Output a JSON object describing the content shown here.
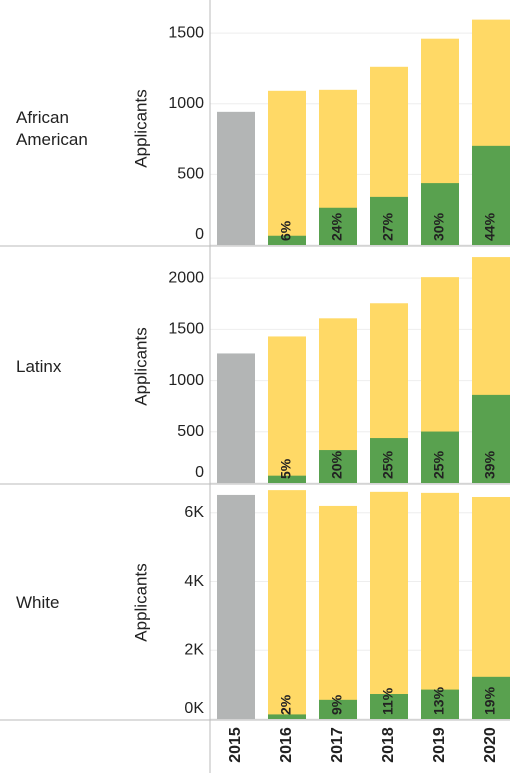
{
  "chart_data": {
    "type": "bar",
    "categories": [
      "2015",
      "2016",
      "2017",
      "2018",
      "2019",
      "2020"
    ],
    "color": "#ffd966",
    "base_color": "#b3b5b5",
    "share_color": "#59a14f",
    "grid": true,
    "panels": [
      {
        "row_label": "African American",
        "ylabel": "Applicants",
        "values": [
          943,
          1092,
          1099,
          1262,
          1461,
          1596
        ],
        "share": [
          null,
          6,
          24,
          27,
          30,
          44
        ],
        "share_labels": [
          null,
          "6%",
          "24%",
          "27%",
          "30%",
          "44%"
        ],
        "ylim": [
          0,
          1650
        ],
        "yticks": [
          0,
          500,
          1000,
          1500
        ]
      },
      {
        "row_label": "Latinx",
        "ylabel": "Applicants",
        "values": [
          1265,
          1431,
          1608,
          1755,
          2010,
          2206
        ],
        "share": [
          null,
          5,
          20,
          25,
          25,
          39
        ],
        "share_labels": [
          null,
          "5%",
          "20%",
          "25%",
          "25%",
          "39%"
        ],
        "ylim": [
          0,
          2275
        ],
        "yticks": [
          0,
          500,
          1000,
          1500,
          2000
        ]
      },
      {
        "row_label": "White",
        "ylabel": "Applicants",
        "values": [
          6520,
          6660,
          6200,
          6610,
          6580,
          6460
        ],
        "share": [
          null,
          2,
          9,
          11,
          13,
          19
        ],
        "share_labels": [
          null,
          "2%",
          "9%",
          "11%",
          "13%",
          "19%"
        ],
        "ylim": [
          0,
          6780
        ],
        "yticks": [
          {
            "value": 0,
            "label": "0K"
          },
          {
            "value": 2000,
            "label": "2K"
          },
          {
            "value": 4000,
            "label": "4K"
          },
          {
            "value": 6000,
            "label": "6K"
          }
        ]
      }
    ]
  }
}
